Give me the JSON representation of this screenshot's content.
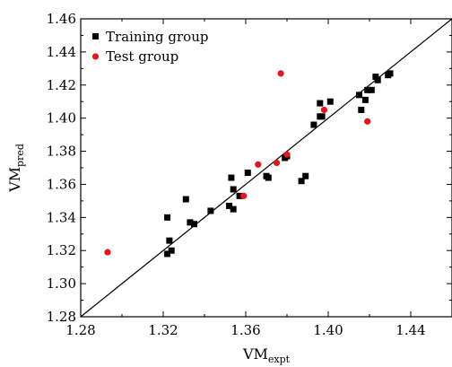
{
  "chart_data": {
    "type": "scatter",
    "xlabel": {
      "main": "VM",
      "sub": "expt"
    },
    "ylabel": {
      "main": "VM",
      "sub": "pred"
    },
    "xlim": [
      1.28,
      1.46
    ],
    "ylim": [
      1.28,
      1.46
    ],
    "x_ticks": [
      1.28,
      1.32,
      1.36,
      1.4,
      1.44
    ],
    "x_tick_labels": [
      "1.28",
      "1.32",
      "1.36",
      "1.40",
      "1.44"
    ],
    "y_ticks": [
      1.28,
      1.3,
      1.32,
      1.34,
      1.36,
      1.38,
      1.4,
      1.42,
      1.44,
      1.46
    ],
    "y_tick_labels": [
      "1.28",
      "1.30",
      "1.32",
      "1.34",
      "1.36",
      "1.38",
      "1.40",
      "1.42",
      "1.44",
      "1.46"
    ],
    "grid": false,
    "legend_position": "top-left",
    "reference_line": {
      "from": [
        1.28,
        1.28
      ],
      "to": [
        1.46,
        1.46
      ],
      "color": "#000000"
    },
    "series": [
      {
        "name": "Training group",
        "marker": "square",
        "color": "#000000",
        "points": [
          [
            1.322,
            1.34
          ],
          [
            1.322,
            1.318
          ],
          [
            1.323,
            1.326
          ],
          [
            1.324,
            1.32
          ],
          [
            1.331,
            1.351
          ],
          [
            1.333,
            1.337
          ],
          [
            1.335,
            1.336
          ],
          [
            1.343,
            1.344
          ],
          [
            1.352,
            1.347
          ],
          [
            1.353,
            1.364
          ],
          [
            1.354,
            1.357
          ],
          [
            1.354,
            1.345
          ],
          [
            1.357,
            1.353
          ],
          [
            1.361,
            1.367
          ],
          [
            1.37,
            1.365
          ],
          [
            1.371,
            1.364
          ],
          [
            1.379,
            1.376
          ],
          [
            1.38,
            1.377
          ],
          [
            1.387,
            1.362
          ],
          [
            1.389,
            1.365
          ],
          [
            1.393,
            1.396
          ],
          [
            1.396,
            1.401
          ],
          [
            1.396,
            1.409
          ],
          [
            1.397,
            1.401
          ],
          [
            1.401,
            1.41
          ],
          [
            1.415,
            1.414
          ],
          [
            1.416,
            1.405
          ],
          [
            1.418,
            1.411
          ],
          [
            1.419,
            1.417
          ],
          [
            1.421,
            1.417
          ],
          [
            1.423,
            1.425
          ],
          [
            1.424,
            1.423
          ],
          [
            1.429,
            1.426
          ],
          [
            1.43,
            1.427
          ]
        ]
      },
      {
        "name": "Test group",
        "marker": "circle",
        "color": "#e8141a",
        "points": [
          [
            1.293,
            1.319
          ],
          [
            1.359,
            1.353
          ],
          [
            1.366,
            1.372
          ],
          [
            1.375,
            1.373
          ],
          [
            1.377,
            1.427
          ],
          [
            1.38,
            1.378
          ],
          [
            1.398,
            1.405
          ],
          [
            1.419,
            1.398
          ]
        ]
      }
    ]
  }
}
